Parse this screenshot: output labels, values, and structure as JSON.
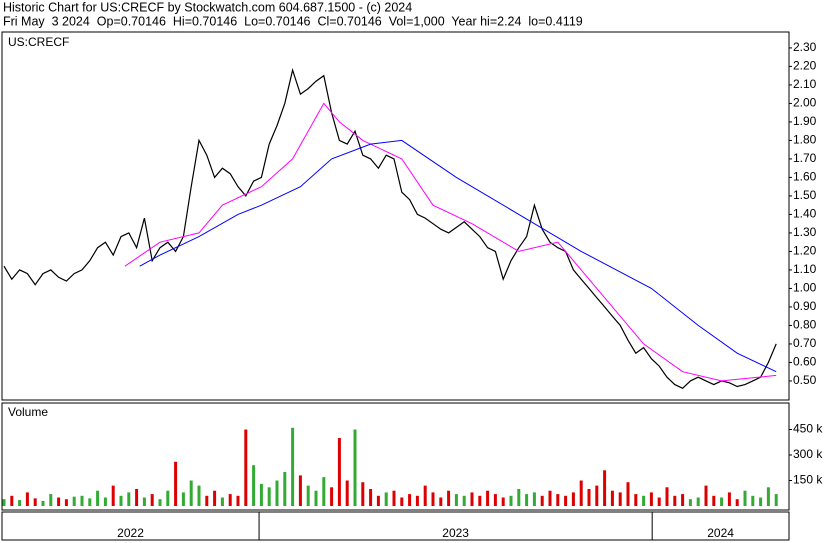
{
  "header": {
    "title": "Historic Chart for US:CRECF by Stockwatch.com 604.687.1500 - (c) 2024",
    "quote": "Fri May  3 2024  Op=0.70146  Hi=0.70146  Lo=0.70146  Cl=0.70146  Vol=1,000  Year hi=2.24  lo=0.4119"
  },
  "chart_data": [
    {
      "type": "line",
      "label": "US:CRECF",
      "xlim": [
        0,
        100
      ],
      "xticks": [
        32.7,
        83.1
      ],
      "x_labels": [
        "2022",
        "2023",
        "2024"
      ],
      "ylim": [
        0.397,
        2.386
      ],
      "yticks": [
        {
          "value": 0.5,
          "label": "0.50"
        },
        {
          "value": 0.6,
          "label": "0.60"
        },
        {
          "value": 0.7,
          "label": "0.70"
        },
        {
          "value": 0.8,
          "label": "0.80"
        },
        {
          "value": 0.9,
          "label": "0.90"
        },
        {
          "value": 1.0,
          "label": "1.00"
        },
        {
          "value": 1.1,
          "label": "1.10"
        },
        {
          "value": 1.2,
          "label": "1.20"
        },
        {
          "value": 1.3,
          "label": "1.30"
        },
        {
          "value": 1.4,
          "label": "1.40"
        },
        {
          "value": 1.5,
          "label": "1.50"
        },
        {
          "value": 1.6,
          "label": "1.60"
        },
        {
          "value": 1.7,
          "label": "1.70"
        },
        {
          "value": 1.8,
          "label": "1.80"
        },
        {
          "value": 1.9,
          "label": "1.90"
        },
        {
          "value": 2.0,
          "label": "2.00"
        },
        {
          "value": 2.1,
          "label": "2.10"
        },
        {
          "value": 2.2,
          "label": "2.20"
        },
        {
          "value": 2.3,
          "label": "2.30"
        }
      ],
      "series": [
        {
          "color": "#000000",
          "values": [
            1.12,
            1.05,
            1.1,
            1.08,
            1.02,
            1.08,
            1.1,
            1.06,
            1.04,
            1.08,
            1.1,
            1.15,
            1.22,
            1.25,
            1.18,
            1.28,
            1.3,
            1.22,
            1.38,
            1.15,
            1.22,
            1.25,
            1.2,
            1.28,
            1.55,
            1.8,
            1.72,
            1.6,
            1.65,
            1.62,
            1.55,
            1.5,
            1.58,
            1.6,
            1.78,
            1.88,
            2.0,
            2.18,
            2.05,
            2.08,
            2.12,
            2.15,
            1.95,
            1.8,
            1.78,
            1.85,
            1.72,
            1.7,
            1.65,
            1.72,
            1.7,
            1.52,
            1.48,
            1.4,
            1.38,
            1.35,
            1.32,
            1.3,
            1.33,
            1.36,
            1.32,
            1.28,
            1.22,
            1.2,
            1.05,
            1.15,
            1.22,
            1.28,
            1.45,
            1.32,
            1.25,
            1.22,
            1.2,
            1.1,
            1.05,
            1.0,
            0.95,
            0.9,
            0.85,
            0.8,
            0.72,
            0.65,
            0.68,
            0.62,
            0.58,
            0.52,
            0.48,
            0.46,
            0.5,
            0.52,
            0.5,
            0.48,
            0.5,
            0.49,
            0.47,
            0.48,
            0.5,
            0.52,
            0.6,
            0.7
          ]
        },
        {
          "color": "#ff00ff",
          "x": [
            15.5,
            20,
            25,
            28,
            33,
            37,
            41,
            43,
            46,
            51,
            55,
            60,
            66,
            71,
            76,
            82,
            87,
            92,
            99
          ],
          "values": [
            1.12,
            1.25,
            1.3,
            1.45,
            1.55,
            1.7,
            2.0,
            1.9,
            1.8,
            1.7,
            1.45,
            1.35,
            1.2,
            1.25,
            1.0,
            0.7,
            0.55,
            0.5,
            0.53
          ]
        },
        {
          "color": "#0000ff",
          "x": [
            17.4,
            20,
            25,
            30,
            33,
            38,
            42,
            47,
            51,
            58,
            66,
            74,
            83,
            89,
            94,
            99
          ],
          "values": [
            1.12,
            1.18,
            1.28,
            1.4,
            1.45,
            1.55,
            1.7,
            1.78,
            1.8,
            1.6,
            1.4,
            1.2,
            1.0,
            0.8,
            0.65,
            0.55
          ]
        }
      ]
    },
    {
      "type": "bar",
      "label": "Volume",
      "up_color": "#33aa33",
      "down_color": "#dd0000",
      "ylim": [
        0,
        606000
      ],
      "yticks": [
        {
          "value": 150000,
          "label": "150 k"
        },
        {
          "value": 300000,
          "label": "300 k"
        },
        {
          "value": 450000,
          "label": "450 k"
        }
      ],
      "values": [
        40000,
        60000,
        35000,
        80000,
        45000,
        30000,
        70000,
        50000,
        40000,
        55000,
        60000,
        45000,
        90000,
        50000,
        120000,
        60000,
        80000,
        100000,
        50000,
        70000,
        40000,
        90000,
        260000,
        80000,
        150000,
        120000,
        60000,
        90000,
        50000,
        70000,
        60000,
        450000,
        240000,
        130000,
        110000,
        150000,
        200000,
        460000,
        180000,
        120000,
        90000,
        170000,
        110000,
        400000,
        150000,
        450000,
        140000,
        100000,
        60000,
        80000,
        90000,
        50000,
        70000,
        60000,
        120000,
        80000,
        50000,
        90000,
        70000,
        60000,
        80000,
        60000,
        90000,
        70000,
        50000,
        60000,
        100000,
        70000,
        80000,
        60000,
        90000,
        70000,
        60000,
        80000,
        150000,
        100000,
        120000,
        210000,
        90000,
        80000,
        140000,
        70000,
        60000,
        80000,
        50000,
        110000,
        60000,
        70000,
        40000,
        50000,
        120000,
        60000,
        50000,
        80000,
        40000,
        90000,
        60000,
        50000,
        110000,
        70000
      ]
    }
  ]
}
